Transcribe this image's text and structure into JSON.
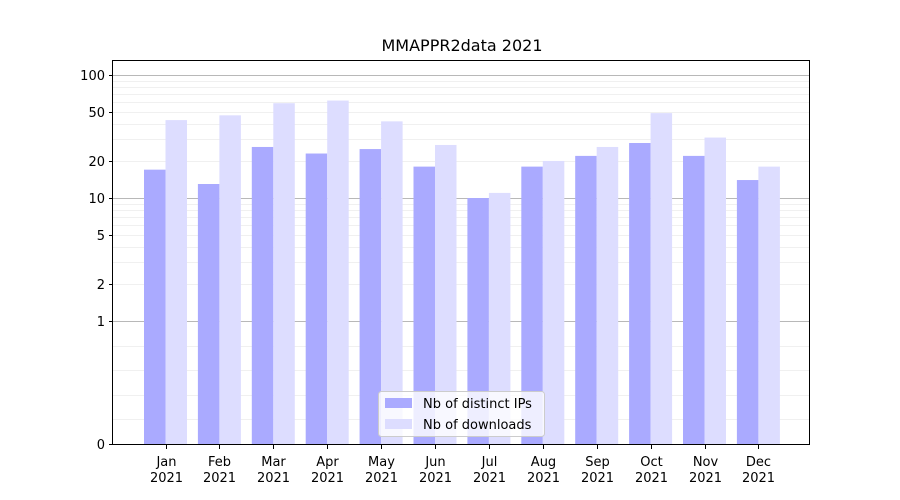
{
  "chart_data": {
    "type": "bar",
    "title": "MMAPPR2data 2021",
    "xlabel": "",
    "ylabel": "",
    "y_scale": "symlog",
    "ylim": [
      0,
      130
    ],
    "y_ticks": [
      0,
      1,
      2,
      5,
      10,
      20,
      50,
      100
    ],
    "grid": true,
    "legend_position": "bottom-center",
    "categories": [
      "Jan\n2021",
      "Feb\n2021",
      "Mar\n2021",
      "Apr\n2021",
      "May\n2021",
      "Jun\n2021",
      "Jul\n2021",
      "Aug\n2021",
      "Sep\n2021",
      "Oct\n2021",
      "Nov\n2021",
      "Dec\n2021"
    ],
    "series": [
      {
        "name": "Nb of distinct IPs",
        "color": "#aaaaff",
        "values": [
          17,
          13,
          26,
          23,
          25,
          18,
          10,
          18,
          22,
          28,
          22,
          14
        ]
      },
      {
        "name": "Nb of downloads",
        "color": "#ddddff",
        "values": [
          43,
          47,
          59,
          62,
          42,
          27,
          11,
          20,
          26,
          49,
          31,
          18
        ]
      }
    ]
  }
}
